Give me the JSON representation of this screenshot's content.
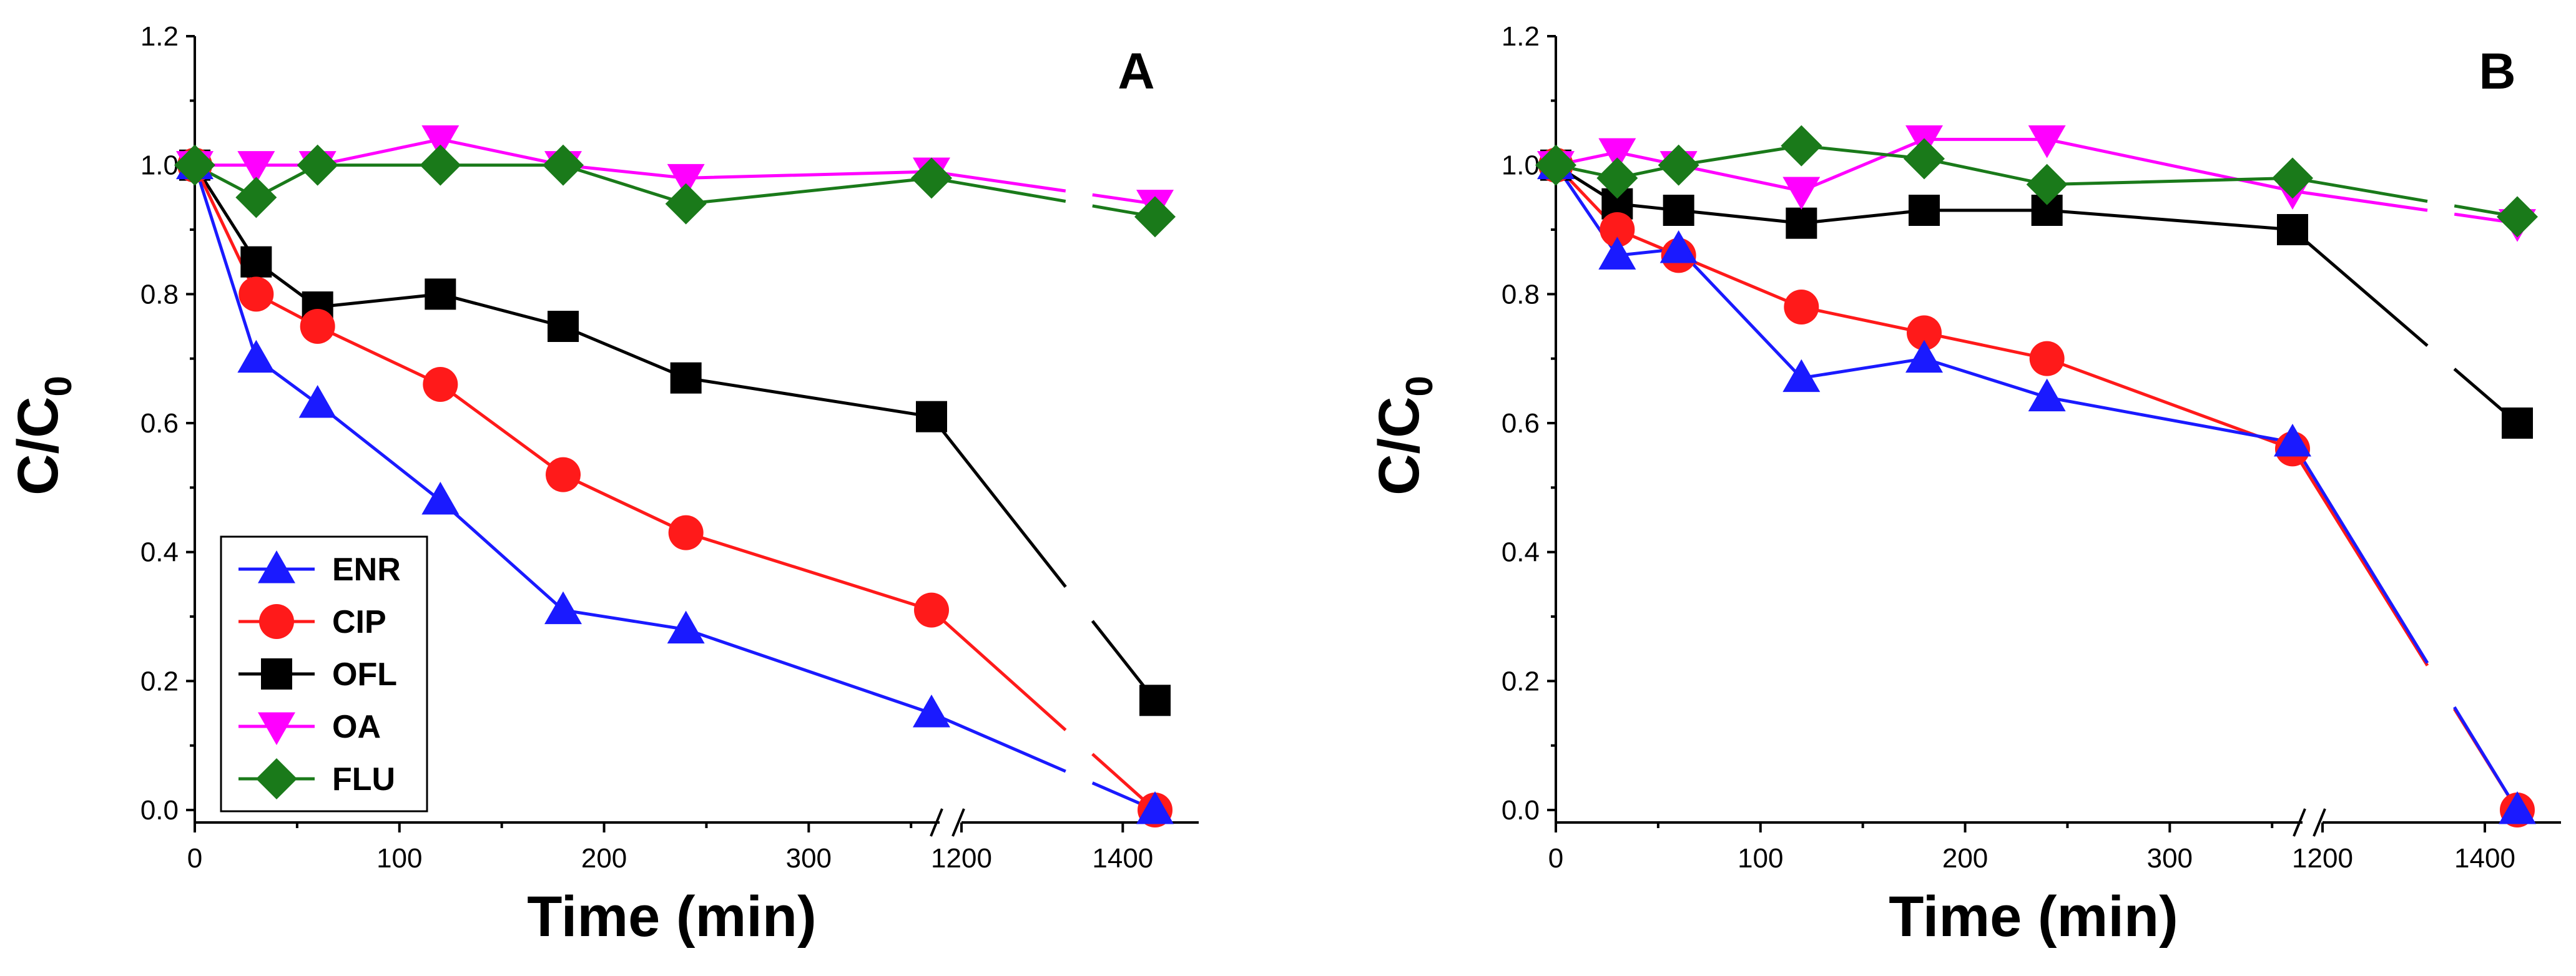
{
  "chart_data": [
    {
      "type": "line",
      "panel": "A",
      "xlabel": "Time (min)",
      "ylabel": "C/C",
      "ylabel_sub": "0",
      "ylim": [
        0,
        1.2
      ],
      "yticks": [
        "0.0",
        "0.2",
        "0.4",
        "0.6",
        "0.8",
        "1.0",
        "1.2"
      ],
      "xticks": [
        {
          "value": 0,
          "label": "0"
        },
        {
          "value": 100,
          "label": "100"
        },
        {
          "value": 200,
          "label": "200"
        },
        {
          "value": 300,
          "label": "300"
        },
        {
          "value": 1200,
          "label": "1200"
        },
        {
          "value": 1400,
          "label": "1400"
        }
      ],
      "axis_break": "between 360 and 1200",
      "legend_position": "bottom-left",
      "x": [
        0,
        30,
        60,
        120,
        180,
        240,
        360,
        1440
      ],
      "series": [
        {
          "name": "ENR",
          "color": "#1a1aff",
          "marker": "triangle-up",
          "values": [
            1.0,
            0.7,
            0.63,
            0.48,
            0.31,
            0.28,
            0.15,
            0.0
          ]
        },
        {
          "name": "CIP",
          "color": "#ff1a1a",
          "marker": "circle",
          "values": [
            1.0,
            0.8,
            0.75,
            0.66,
            0.52,
            0.43,
            0.31,
            0.0
          ]
        },
        {
          "name": "OFL",
          "color": "#000000",
          "marker": "square",
          "values": [
            1.0,
            0.85,
            0.78,
            0.8,
            0.75,
            0.67,
            0.61,
            0.17
          ]
        },
        {
          "name": "OA",
          "color": "#ff00ff",
          "marker": "triangle-down",
          "values": [
            1.0,
            1.0,
            1.0,
            1.04,
            1.0,
            0.98,
            0.99,
            0.94
          ]
        },
        {
          "name": "FLU",
          "color": "#1a7a1a",
          "marker": "diamond",
          "values": [
            1.0,
            0.95,
            1.0,
            1.0,
            1.0,
            0.94,
            0.98,
            0.92
          ]
        }
      ]
    },
    {
      "type": "line",
      "panel": "B",
      "xlabel": "Time (min)",
      "ylabel": "C/C",
      "ylabel_sub": "0",
      "ylim": [
        0,
        1.2
      ],
      "yticks": [
        "0.0",
        "0.2",
        "0.4",
        "0.6",
        "0.8",
        "1.0",
        "1.2"
      ],
      "xticks": [
        {
          "value": 0,
          "label": "0"
        },
        {
          "value": 100,
          "label": "100"
        },
        {
          "value": 200,
          "label": "200"
        },
        {
          "value": 300,
          "label": "300"
        },
        {
          "value": 1200,
          "label": "1200"
        },
        {
          "value": 1400,
          "label": "1400"
        }
      ],
      "axis_break": "between 360 and 1200",
      "legend_position": "none",
      "x": [
        0,
        30,
        60,
        120,
        180,
        240,
        360,
        1440
      ],
      "series": [
        {
          "name": "ENR",
          "color": "#1a1aff",
          "marker": "triangle-up",
          "values": [
            1.0,
            0.86,
            0.87,
            0.67,
            0.7,
            0.64,
            0.57,
            0.0
          ]
        },
        {
          "name": "CIP",
          "color": "#ff1a1a",
          "marker": "circle",
          "values": [
            1.0,
            0.9,
            0.86,
            0.78,
            0.74,
            0.7,
            0.56,
            0.0
          ]
        },
        {
          "name": "OFL",
          "color": "#000000",
          "marker": "square",
          "values": [
            1.0,
            0.94,
            0.93,
            0.91,
            0.93,
            0.93,
            0.9,
            0.6
          ]
        },
        {
          "name": "OA",
          "color": "#ff00ff",
          "marker": "triangle-down",
          "values": [
            1.0,
            1.02,
            1.0,
            0.96,
            1.04,
            1.04,
            0.96,
            0.91
          ]
        },
        {
          "name": "FLU",
          "color": "#1a7a1a",
          "marker": "diamond",
          "values": [
            1.0,
            0.98,
            1.0,
            1.03,
            1.01,
            0.97,
            0.98,
            0.92
          ]
        }
      ]
    }
  ]
}
